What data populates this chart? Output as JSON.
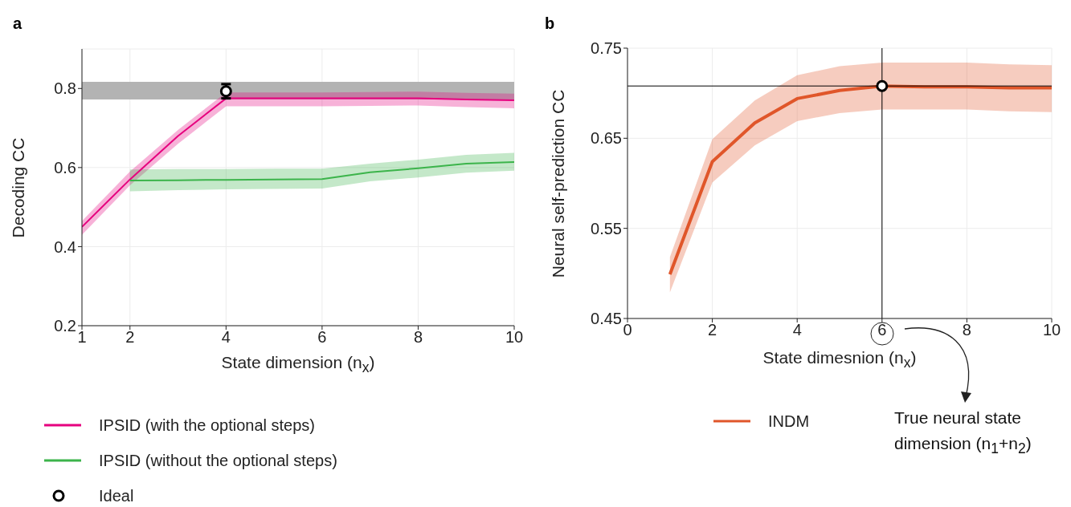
{
  "chart_data": [
    {
      "type": "line",
      "title": "a",
      "xlabel": "State dimension (n$_{x}$)",
      "ylabel": "Decoding CC",
      "xlim": [
        1,
        10
      ],
      "xticks": [
        1,
        2,
        4,
        6,
        8,
        10
      ],
      "ylim": [
        0.2,
        0.9
      ],
      "yticks": [
        0.2,
        0.4,
        0.6,
        0.8
      ],
      "grid": true,
      "legend": "bottom",
      "line_style": "solid",
      "bands": [
        {
          "axis": "y",
          "from": 0.772,
          "to": 0.817,
          "color": "#b3b3b3"
        }
      ],
      "series": [
        {
          "name": "IPSID (with the optional steps)",
          "marker": "none",
          "color": "#e6007e",
          "x": [
            1,
            2,
            3,
            4,
            5,
            6,
            7,
            8,
            9,
            10
          ],
          "values": [
            0.45,
            0.57,
            0.68,
            0.775,
            0.775,
            0.775,
            0.775,
            0.775,
            0.772,
            0.77
          ],
          "lower": [
            0.43,
            0.555,
            0.66,
            0.755,
            0.755,
            0.755,
            0.756,
            0.757,
            0.753,
            0.75
          ],
          "upper": [
            0.465,
            0.59,
            0.695,
            0.79,
            0.79,
            0.79,
            0.791,
            0.792,
            0.789,
            0.787
          ]
        },
        {
          "name": "IPSID (without the optional steps)",
          "marker": "none",
          "color": "#3cb44b",
          "x": [
            2,
            3,
            4,
            5,
            6,
            7,
            8,
            9,
            10
          ],
          "values": [
            0.567,
            0.568,
            0.569,
            0.57,
            0.571,
            0.588,
            0.598,
            0.61,
            0.614
          ],
          "lower": [
            0.54,
            0.543,
            0.545,
            0.546,
            0.547,
            0.565,
            0.575,
            0.587,
            0.592
          ],
          "upper": [
            0.595,
            0.596,
            0.596,
            0.597,
            0.597,
            0.61,
            0.62,
            0.632,
            0.637
          ]
        },
        {
          "name": "Ideal",
          "type": "scatter",
          "marker": "circle",
          "color": "#000000",
          "x": [
            4
          ],
          "values": [
            0.793
          ],
          "errors": [
            0.018
          ]
        }
      ]
    },
    {
      "type": "line",
      "title": "b",
      "xlabel": "State dimesnion (n$_{x}$)",
      "ylabel": "Neural self-prediction CC",
      "xlim": [
        0,
        10
      ],
      "xticks": [
        0,
        2,
        4,
        6,
        8,
        10
      ],
      "ylim": [
        0.45,
        0.75
      ],
      "yticks": [
        0.45,
        0.55,
        0.65,
        0.75
      ],
      "grid": true,
      "legend": "bottom",
      "line_style": "solid",
      "ref_lines": [
        {
          "axis": "x",
          "value": 6,
          "color": "#000000"
        },
        {
          "axis": "y",
          "value": 0.708,
          "color": "#000000"
        }
      ],
      "annotations": [
        "True neural state dimension (n$_{1}$+n$_{2}$)"
      ],
      "series": [
        {
          "name": "INDM",
          "marker": "none",
          "color": "#e0562a",
          "x": [
            1,
            2,
            3,
            4,
            5,
            6,
            7,
            8,
            9,
            10
          ],
          "values": [
            0.499,
            0.624,
            0.667,
            0.694,
            0.703,
            0.708,
            0.707,
            0.707,
            0.706,
            0.706
          ],
          "lower": [
            0.479,
            0.601,
            0.642,
            0.669,
            0.678,
            0.682,
            0.682,
            0.682,
            0.68,
            0.679
          ],
          "upper": [
            0.518,
            0.649,
            0.692,
            0.72,
            0.73,
            0.734,
            0.734,
            0.734,
            0.732,
            0.731
          ]
        },
        {
          "type": "scatter",
          "marker": "circle",
          "color": "#000000",
          "x": [
            6
          ],
          "values": [
            0.708
          ]
        }
      ]
    }
  ]
}
